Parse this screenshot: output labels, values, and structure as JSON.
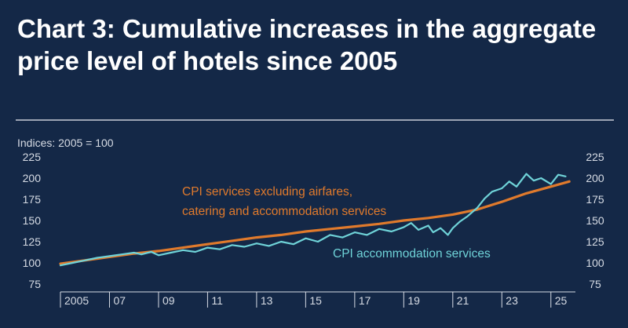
{
  "title": "Chart 3: Cumulative increases in the aggregate price level of hotels since 2005",
  "colors": {
    "background": "#142847",
    "orange": "#e07a2c",
    "cyan": "#6fd3d8",
    "rule": "#c9ced8",
    "axis": "#d6dbe4"
  },
  "chart_data": {
    "type": "line",
    "subtitle": "Indices: 2005 = 100",
    "ylim": [
      75,
      225
    ],
    "yticks": [
      "225",
      "200",
      "175",
      "150",
      "125",
      "100",
      "75"
    ],
    "ytick_values": [
      225,
      200,
      175,
      150,
      125,
      100,
      75
    ],
    "xlim": [
      2005,
      2026
    ],
    "xticks": [
      "2005",
      "07",
      "09",
      "11",
      "13",
      "15",
      "17",
      "19",
      "21",
      "23",
      "25"
    ],
    "xtick_years": [
      2005,
      2007,
      2009,
      2011,
      2013,
      2015,
      2017,
      2019,
      2021,
      2023,
      2025
    ],
    "grid": false,
    "annotations": {
      "orange_line1": "CPI services excluding airfares,",
      "orange_line2": "catering and accommodation services",
      "cyan": "CPI accommodation services"
    },
    "series": [
      {
        "name": "CPI services excluding airfares, catering and accommodation services",
        "color": "#e07a2c",
        "x": [
          2005,
          2006,
          2007,
          2008,
          2009,
          2010,
          2011,
          2012,
          2013,
          2014,
          2015,
          2016,
          2017,
          2018,
          2019,
          2020,
          2021,
          2022,
          2023,
          2024,
          2025,
          2025.75
        ],
        "y": [
          99,
          103,
          107,
          111,
          114,
          118,
          122,
          126,
          130,
          133,
          137,
          140,
          143,
          146,
          150,
          153,
          157,
          163,
          172,
          182,
          190,
          196
        ]
      },
      {
        "name": "CPI accommodation services",
        "color": "#6fd3d8",
        "x": [
          2005,
          2005.5,
          2006,
          2006.5,
          2007,
          2007.5,
          2008,
          2008.3,
          2008.7,
          2009,
          2009.5,
          2010,
          2010.5,
          2011,
          2011.5,
          2012,
          2012.5,
          2013,
          2013.5,
          2014,
          2014.5,
          2015,
          2015.5,
          2016,
          2016.5,
          2017,
          2017.5,
          2018,
          2018.5,
          2019,
          2019.3,
          2019.6,
          2020,
          2020.2,
          2020.5,
          2020.8,
          2021,
          2021.3,
          2021.6,
          2022,
          2022.3,
          2022.6,
          2023,
          2023.3,
          2023.6,
          2024,
          2024.3,
          2024.6,
          2025,
          2025.3,
          2025.6
        ],
        "y": [
          97,
          100,
          103,
          106,
          108,
          110,
          112,
          110,
          113,
          109,
          112,
          115,
          113,
          118,
          116,
          121,
          119,
          123,
          120,
          125,
          122,
          129,
          125,
          133,
          130,
          136,
          133,
          140,
          137,
          142,
          147,
          139,
          144,
          136,
          141,
          133,
          141,
          149,
          155,
          165,
          176,
          184,
          188,
          196,
          190,
          205,
          197,
          200,
          193,
          204,
          202
        ]
      }
    ]
  }
}
